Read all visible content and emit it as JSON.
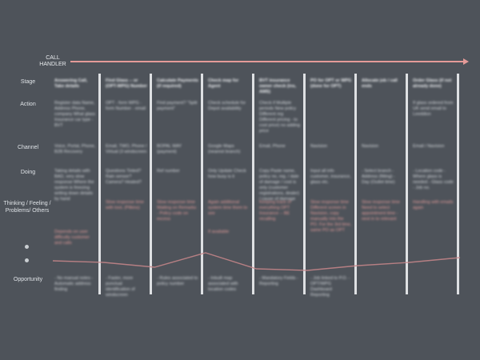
{
  "swimlane": {
    "role_label": "CALL HANDLER",
    "accent_color": "#e49a98",
    "rows": {
      "stage": "Stage",
      "action": "Action",
      "channel": "Channel",
      "doing": "Doing",
      "thinking": "Thinking / Feeling / Problems/ Others",
      "opportunity": "Opportunity"
    },
    "icons": [
      "positive-emotion-icon",
      "negative-emotion-icon"
    ]
  },
  "columns": [
    {
      "stage": "Answering Call, Take details",
      "action": "Register data Name, Address Phone, company What glass Insurance car type - BVT",
      "channel": "Voice, Portal, Phone, B2B Recovery",
      "doing": "Taking details with BAD, very slow response Where the system is freezing writing down details by hand",
      "thinking": "",
      "extra": "Depends on user difficulty customer and calls",
      "opportunity": "- No manual notes - Automatic address finding"
    },
    {
      "stage": "Find Glass -- or (OPT-WPG) Number",
      "action": "OPT - form WPG - form Number - email",
      "channel": "Email, TWO, Phone / Virtual (3 windscreen",
      "doing": "Questions Tinted? Rain sensor? Camera? Heated?",
      "thinking": "Slow response time with tooL (Pilkins)",
      "extra": "",
      "opportunity": "- Faster, more punctual identification of windscreen"
    },
    {
      "stage": "Calculate Payments (if required)",
      "action": "Find payment? \"Split payment\"",
      "channel": "BOPAL WAY (payment)",
      "doing": "Ref number",
      "thinking": "Slow response time Waiting on Remarks - Policy code on excess",
      "extra": "",
      "opportunity": "- Rules associated to policy number"
    },
    {
      "stage": "Check map for Agent",
      "action": "Check schedule for Depot availability",
      "channel": "Google Maps (nearest branch)",
      "doing": "Only Update Check how busy is it",
      "thinking": "Again additional system time them to see",
      "extra": "If available",
      "opportunity": "- Inbuilt map associated with location codes"
    },
    {
      "stage": "BVT insurance owner check (ins, AMS)",
      "action": "Check if Multiple periods New policy Different reg Different pricing - to cost price) no adding price",
      "channel": "Email, Phone",
      "doing": "Copy Paste name, policy no, reg. / date of damage / cost is only (customer registrations, dealer) / cause of damage",
      "thinking": "Keeping track of everything OPT Insurance -- BE recalling",
      "extra": "",
      "opportunity": "- Mandatory Fields - Reporting"
    },
    {
      "stage": "PO for OPT or WPG (done for OPT)",
      "action": "",
      "channel": "Navision",
      "doing": "Input all info customer, insurance, glass etc.",
      "thinking": "Slow response time Different screen in Navision, copy manually into the PO. For the 3rd time, same PO as OPT",
      "extra": "",
      "opportunity": "- Job linked to P.O. - OPT/WPG Dashboard Reporting"
    },
    {
      "stage": "Allocate job / call ends",
      "action": "",
      "channel": "Navision",
      "doing": "- Select branch - Address (fitting) - Day (Outlet time)",
      "thinking": "Slow response time Need to select appointment time - next in to relevant",
      "extra": "",
      "opportunity": ""
    },
    {
      "stage": "Order Glass (if not already done)",
      "action": "If glass ordered from UK send email to Leeddion",
      "channel": "Email / Navision",
      "doing": "- Location code - Where glass is needed - Glass code - Job no.",
      "thinking": "Handling with emails again",
      "extra": "",
      "opportunity": ""
    }
  ],
  "emotion_curve": {
    "color": "#c9878b",
    "levels": [
      0.35,
      0.3,
      0.15,
      0.6,
      0.1,
      0.05,
      0.2,
      0.3,
      0.45
    ]
  }
}
